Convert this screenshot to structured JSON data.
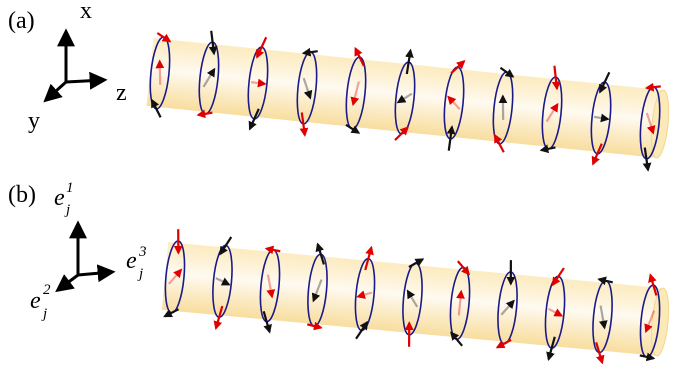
{
  "panel_a": {
    "label": "(a)",
    "axes": {
      "x": "x",
      "y": "y",
      "z": "z"
    }
  },
  "panel_b": {
    "label": "(b)",
    "axes": {
      "e1": {
        "base": "e",
        "sub": "j",
        "sup": "1"
      },
      "e2": {
        "base": "e",
        "sub": "j",
        "sup": "2"
      },
      "e3": {
        "base": "e",
        "sub": "j",
        "sup": "3"
      }
    }
  }
}
